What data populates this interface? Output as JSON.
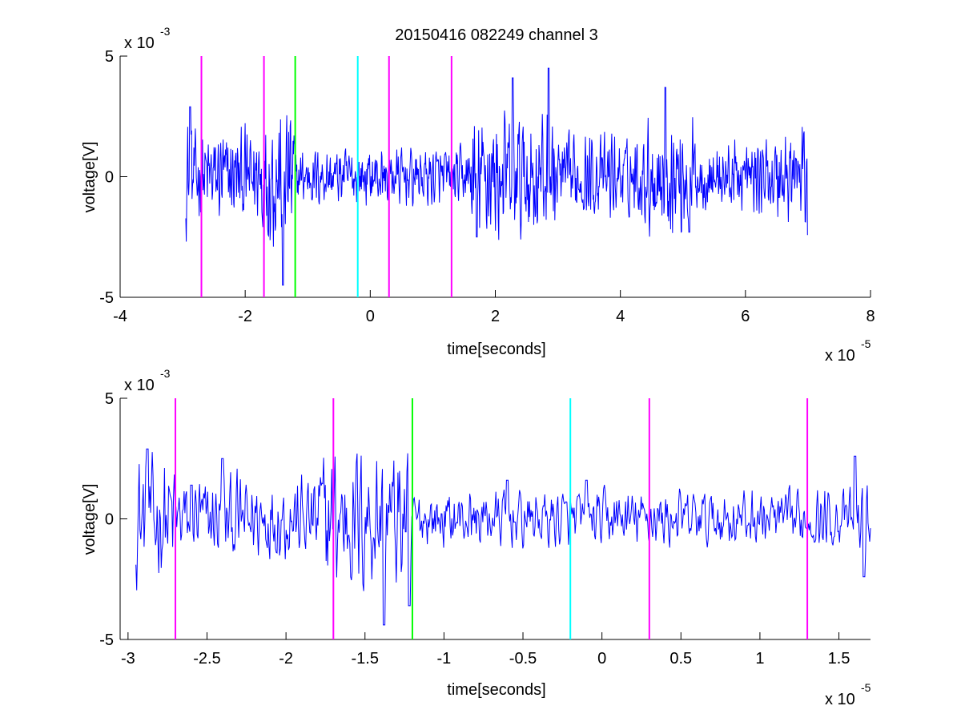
{
  "figure": {
    "background": "#ffffff",
    "title": "20150416 082249 channel 3"
  },
  "colors": {
    "signal": "#0000ff",
    "marker_magenta": "#ff00ff",
    "marker_green": "#00ff00",
    "marker_cyan": "#00ffff",
    "axis": "#000000"
  },
  "chart_data": [
    {
      "type": "line",
      "panel": "top",
      "title": "20150416 082249 channel 3",
      "xlabel": "time[seconds]",
      "ylabel": "voltage[V]",
      "x_multiplier": "x 10",
      "x_exponent": "-5",
      "y_multiplier": "x 10",
      "y_exponent": "-3",
      "xlim": [
        -4,
        8
      ],
      "ylim": [
        -5,
        5
      ],
      "xticks": [
        -4,
        -2,
        0,
        2,
        4,
        6,
        8
      ],
      "yticks": [
        -5,
        0,
        5
      ],
      "xtick_labels": [
        "-4",
        "-2",
        "0",
        "2",
        "4",
        "6",
        "8"
      ],
      "ytick_labels": [
        "-5",
        "0",
        "5"
      ],
      "grid": false,
      "series": [
        {
          "color": "#0000ff",
          "x_range": [
            -2.95,
            7.0
          ],
          "segments": [
            {
              "x": [
                -2.95,
                -2.85
              ],
              "amp": 2.0
            },
            {
              "x": [
                -2.85,
                -1.3
              ],
              "amp": 1.6
            },
            {
              "x": [
                -1.8,
                -1.2
              ],
              "amp": 2.6
            },
            {
              "x": [
                -1.2,
                1.6
              ],
              "amp": 1.0
            },
            {
              "x": [
                1.6,
                3.0
              ],
              "amp": 2.2
            },
            {
              "x": [
                3.0,
                4.4
              ],
              "amp": 1.4
            },
            {
              "x": [
                4.4,
                5.2
              ],
              "amp": 2.0
            },
            {
              "x": [
                5.2,
                6.5
              ],
              "amp": 1.2
            },
            {
              "x": [
                6.5,
                7.0
              ],
              "amp": 1.8
            }
          ],
          "peaks": [
            {
              "x": -2.88,
              "y": 2.9
            },
            {
              "x": -1.4,
              "y": -4.5
            },
            {
              "x": 2.28,
              "y": 4.1
            },
            {
              "x": 2.85,
              "y": 4.5
            },
            {
              "x": 4.72,
              "y": 3.7
            },
            {
              "x": 1.7,
              "y": -2.5
            },
            {
              "x": 5.1,
              "y": -2.3
            },
            {
              "x": 7.0,
              "y": -2.4
            },
            {
              "x": 7.02,
              "y": 2.4
            }
          ]
        }
      ],
      "vlines": [
        {
          "x": -2.7,
          "color": "#ff00ff"
        },
        {
          "x": -1.7,
          "color": "#ff00ff"
        },
        {
          "x": -1.2,
          "color": "#00ff00"
        },
        {
          "x": -0.2,
          "color": "#00ffff"
        },
        {
          "x": 0.3,
          "color": "#ff00ff"
        },
        {
          "x": 1.3,
          "color": "#ff00ff"
        }
      ]
    },
    {
      "type": "line",
      "panel": "bottom",
      "xlabel": "time[seconds]",
      "ylabel": "voltage[V]",
      "x_multiplier": "x 10",
      "x_exponent": "-5",
      "y_multiplier": "x 10",
      "y_exponent": "-3",
      "xlim": [
        -3.05,
        1.7
      ],
      "ylim": [
        -5,
        5
      ],
      "xticks": [
        -3,
        -2.5,
        -2,
        -1.5,
        -1,
        -0.5,
        0,
        0.5,
        1,
        1.5
      ],
      "yticks": [
        -5,
        0,
        5
      ],
      "xtick_labels": [
        "-3",
        "-2.5",
        "-2",
        "-1.5",
        "-1",
        "-0.5",
        "0",
        "0.5",
        "1",
        "1.5"
      ],
      "ytick_labels": [
        "-5",
        "0",
        "5"
      ],
      "grid": false,
      "series": [
        {
          "color": "#0000ff",
          "x_range": [
            -2.95,
            1.7
          ],
          "segments": [
            {
              "x": [
                -2.95,
                -2.7
              ],
              "amp": 2.2
            },
            {
              "x": [
                -2.7,
                -1.8
              ],
              "amp": 1.5
            },
            {
              "x": [
                -1.8,
                -1.2
              ],
              "amp": 2.6
            },
            {
              "x": [
                -1.2,
                1.7
              ],
              "amp": 1.0
            }
          ],
          "peaks": [
            {
              "x": -2.88,
              "y": 2.9
            },
            {
              "x": -2.6,
              "y": 1.4
            },
            {
              "x": -2.4,
              "y": 2.5
            },
            {
              "x": -1.38,
              "y": -4.4
            },
            {
              "x": -1.22,
              "y": -3.6
            },
            {
              "x": -0.6,
              "y": 1.6
            },
            {
              "x": -0.1,
              "y": 1.6
            },
            {
              "x": 1.6,
              "y": 2.6
            },
            {
              "x": 1.66,
              "y": -2.4
            }
          ]
        }
      ],
      "vlines": [
        {
          "x": -2.7,
          "color": "#ff00ff"
        },
        {
          "x": -1.7,
          "color": "#ff00ff"
        },
        {
          "x": -1.2,
          "color": "#00ff00"
        },
        {
          "x": -0.2,
          "color": "#00ffff"
        },
        {
          "x": 0.3,
          "color": "#ff00ff"
        },
        {
          "x": 1.3,
          "color": "#ff00ff"
        }
      ]
    }
  ]
}
